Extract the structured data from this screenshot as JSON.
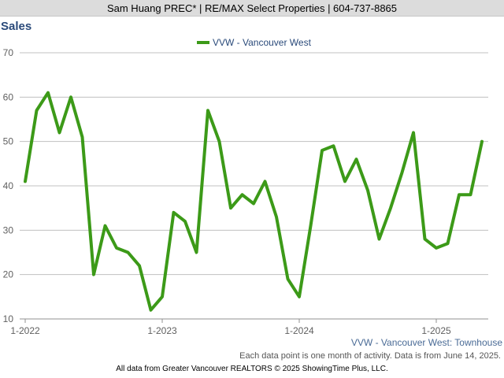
{
  "banner": "Sam Huang PREC* | RE/MAX Select Properties | 604-737-8865",
  "footer": "All data from Greater Vancouver REALTORS © 2025 ShowingTime Plus, LLC.",
  "colors": {
    "series": "#3c9a18",
    "grid": "#c0c0c0",
    "title": "#2a4a7a"
  },
  "chart_data": {
    "type": "line",
    "title": "Sales",
    "subtitle": "VVW - Vancouver West: Townhouse",
    "note": "Each data point is one month of activity. Data is from June 14, 2025.",
    "ylim": [
      10,
      70
    ],
    "yticks": [
      10,
      20,
      30,
      40,
      50,
      60,
      70
    ],
    "xticks": [
      {
        "label": "1-2022",
        "index": 0
      },
      {
        "label": "1-2023",
        "index": 12
      },
      {
        "label": "1-2024",
        "index": 24
      },
      {
        "label": "1-2025",
        "index": 36
      }
    ],
    "legend": "top-center",
    "grid": true,
    "series": [
      {
        "name": "VVW - Vancouver West",
        "values": [
          41,
          57,
          61,
          52,
          60,
          51,
          20,
          31,
          26,
          25,
          22,
          12,
          15,
          34,
          32,
          25,
          57,
          50,
          35,
          38,
          36,
          41,
          33,
          19,
          15,
          31,
          48,
          49,
          41,
          46,
          39,
          28,
          35,
          43,
          52,
          28,
          26,
          27,
          38,
          38,
          50
        ]
      }
    ]
  }
}
